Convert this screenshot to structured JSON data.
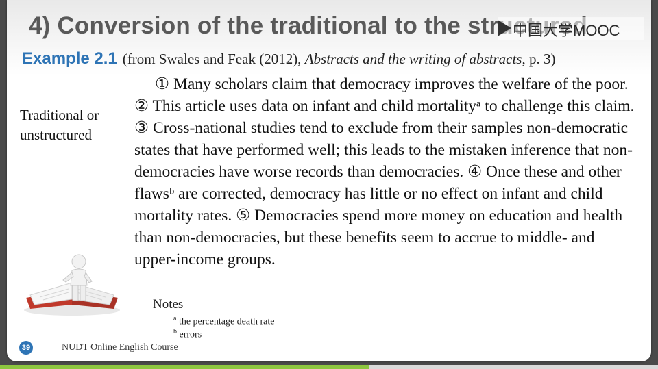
{
  "slide": {
    "title": "4) Conversion of the traditional to the structured",
    "watermark": "中国大学MOOC",
    "example": {
      "label": "Example 2.1",
      "source_pre": "(from Swales and Feak (2012), ",
      "source_title": "Abstracts and the writing of abstracts",
      "source_post": ", p. 3)"
    },
    "side_label": "Traditional or unstructured",
    "abstract": "① Many scholars claim that democracy improves the welfare of the poor. ② This article uses data on infant and child mortalityᵃ to challenge this claim. ③ Cross-national studies tend to exclude from their samples non-democratic states that have performed well; this leads to the mistaken inference that non-democracies have worse records than democracies. ④ Once these and other flawsᵇ are corrected, democracy has little or no effect on infant and child mortality rates. ⑤ Democracies spend more money on education and health than non-democracies, but these benefits seem to accrue to middle- and upper-income groups.",
    "notes_heading": "Notes",
    "notes": [
      {
        "marker": "a",
        "text": " the percentage  death rate"
      },
      {
        "marker": "b",
        "text": " errors"
      }
    ],
    "page_number": "39",
    "footer": "NUDT Online English Course"
  },
  "colors": {
    "title": "#595959",
    "accent_blue": "#2e74b5",
    "progress_green": "#8dc63f",
    "book_red": "#c0392b"
  },
  "icons": [
    "play-icon",
    "book-figure-illustration"
  ]
}
